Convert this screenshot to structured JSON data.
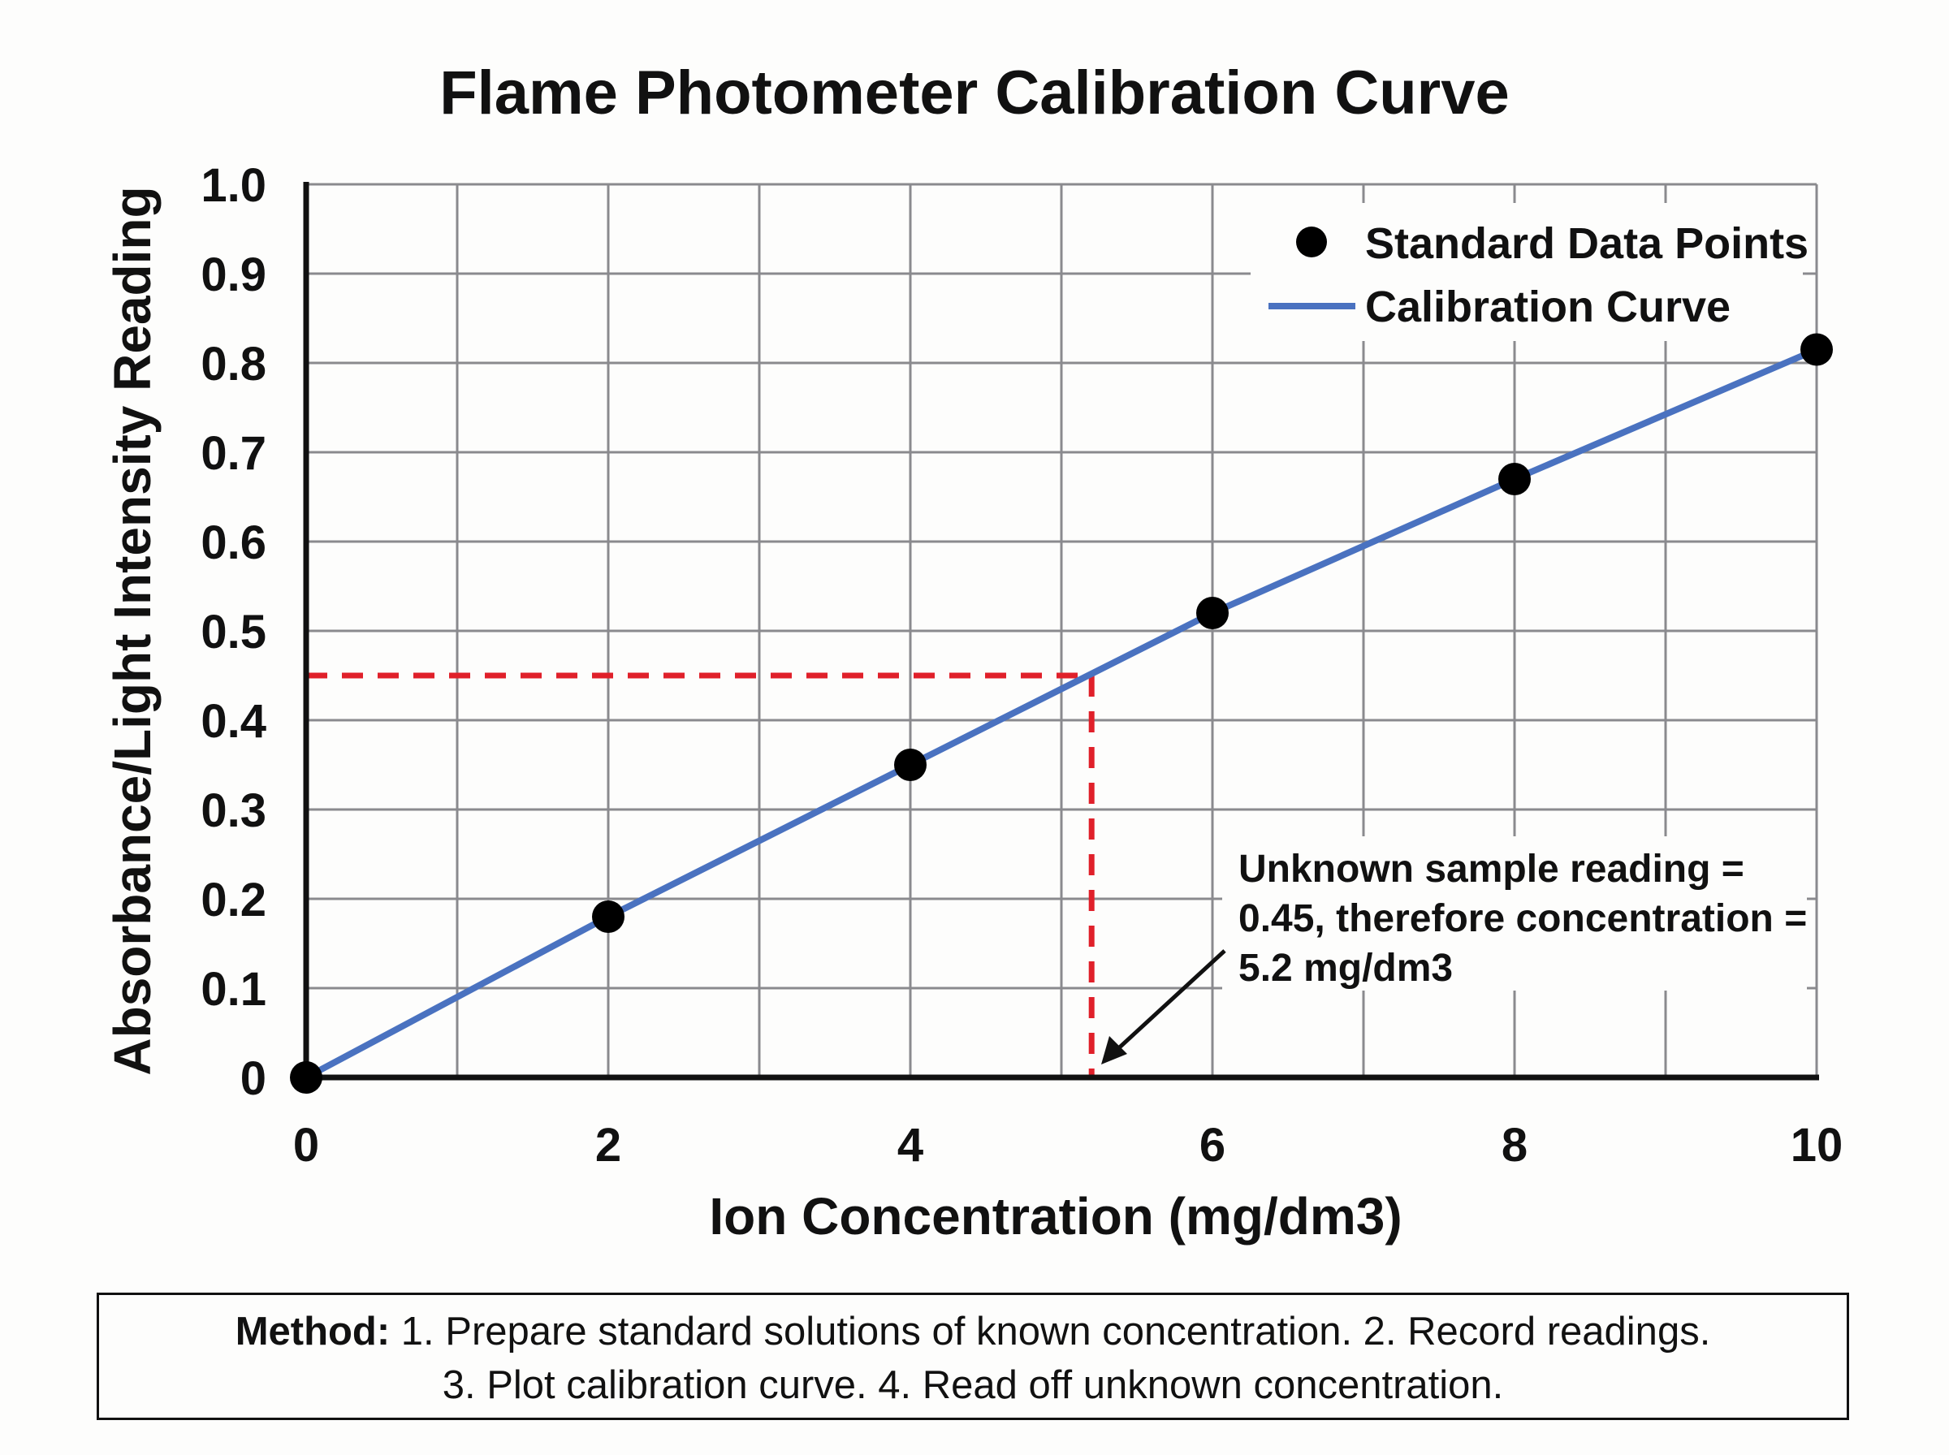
{
  "chart_data": {
    "type": "line",
    "title": "Flame Photometer Calibration Curve",
    "xlabel": "Ion Concentration (mg/dm3)",
    "ylabel": "Absorbance/Light Intensity Reading",
    "xlim": [
      0,
      10
    ],
    "ylim": [
      0,
      1.0
    ],
    "x_ticks": [
      "0",
      "2",
      "4",
      "6",
      "8",
      "10"
    ],
    "y_ticks": [
      "0",
      "0.1",
      "0.2",
      "0.3",
      "0.4",
      "0.5",
      "0.6",
      "0.7",
      "0.8",
      "0.9",
      "1.0"
    ],
    "grid": true,
    "legend_position": "top-right",
    "series": [
      {
        "name": "Standard Data Points",
        "kind": "scatter",
        "color": "#000000",
        "x": [
          0,
          2,
          4,
          6,
          8,
          10
        ],
        "y": [
          0,
          0.18,
          0.35,
          0.52,
          0.67,
          0.815
        ]
      },
      {
        "name": "Calibration Curve",
        "kind": "line",
        "color": "#4a72c0",
        "x": [
          0,
          2,
          4,
          6,
          8,
          10
        ],
        "y": [
          0,
          0.18,
          0.35,
          0.52,
          0.67,
          0.815
        ]
      }
    ],
    "unknown_sample": {
      "reading": 0.45,
      "concentration": 5.2,
      "color": "#e0202a"
    },
    "annotation": [
      "Unknown sample reading =",
      "0.45, therefore concentration =",
      "5.2 mg/dm3"
    ]
  },
  "method": {
    "label": "Method:",
    "line1": " 1. Prepare standard solutions of known concentration. 2. Record readings.",
    "line2": "3. Plot calibration curve. 4. Read off unknown concentration."
  }
}
